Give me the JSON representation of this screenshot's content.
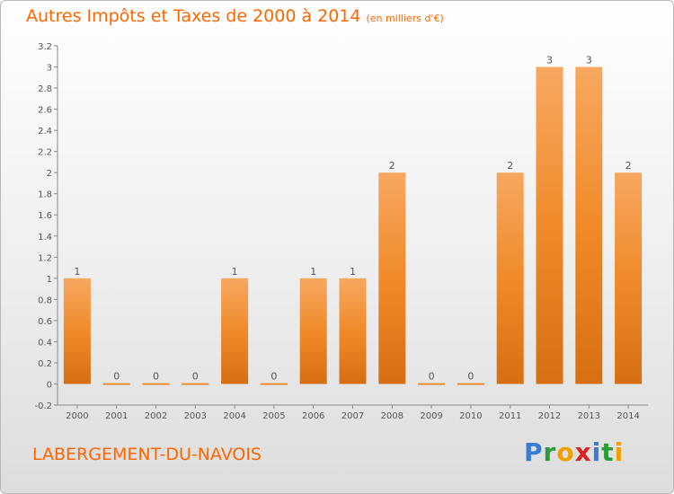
{
  "title": "Autres Impôts et Taxes de 2000 à 2014",
  "title_unit": "(en milliers d'€)",
  "commune": "LABERGEMENT-DU-NAVOIS",
  "logo": {
    "text": "Proxiti",
    "letters": [
      {
        "ch": "P",
        "color": "#3a7bd5"
      },
      {
        "ch": "r",
        "color": "#2a9d3a"
      },
      {
        "ch": "o",
        "color": "#f0a000"
      },
      {
        "ch": "x",
        "color": "#e02020"
      },
      {
        "ch": "i",
        "color": "#3a7bd5"
      },
      {
        "ch": "t",
        "color": "#2a9d3a"
      },
      {
        "ch": "i",
        "color": "#f0a000"
      }
    ]
  },
  "colors": {
    "bar": "#f08a2a",
    "bar_light": "#f7a860",
    "bar_dark": "#d66f12",
    "title": "#ff6600",
    "grid": "#cccccc"
  },
  "chart_data": {
    "type": "bar",
    "categories": [
      "2000",
      "2001",
      "2002",
      "2003",
      "2004",
      "2005",
      "2006",
      "2007",
      "2008",
      "2009",
      "2010",
      "2011",
      "2012",
      "2013",
      "2014"
    ],
    "values": [
      1,
      0,
      0,
      0,
      1,
      0,
      1,
      1,
      2,
      0,
      0,
      2,
      3,
      3,
      2
    ],
    "data_labels": [
      "1",
      "0",
      "0",
      "0",
      "1",
      "0",
      "1",
      "1",
      "2",
      "0",
      "0",
      "2",
      "3",
      "3",
      "2"
    ],
    "title": "Autres Impôts et Taxes de 2000 à 2014",
    "xlabel": "",
    "ylabel": "",
    "ylim": [
      -0.2,
      3.2
    ],
    "yticks": [
      -0.2,
      0,
      0.2,
      0.4,
      0.6,
      0.8,
      1,
      1.2,
      1.4,
      1.6,
      1.8,
      2,
      2.2,
      2.4,
      2.6,
      2.8,
      3,
      3.2
    ],
    "ytick_labels": [
      "-0.2",
      "0",
      "0.2",
      "0.4",
      "0.6",
      "0.8",
      "1",
      "1.2",
      "1.4",
      "1.6",
      "1.8",
      "2",
      "2.2",
      "2.4",
      "2.6",
      "2.8",
      "3",
      "3.2"
    ],
    "grid": false
  }
}
